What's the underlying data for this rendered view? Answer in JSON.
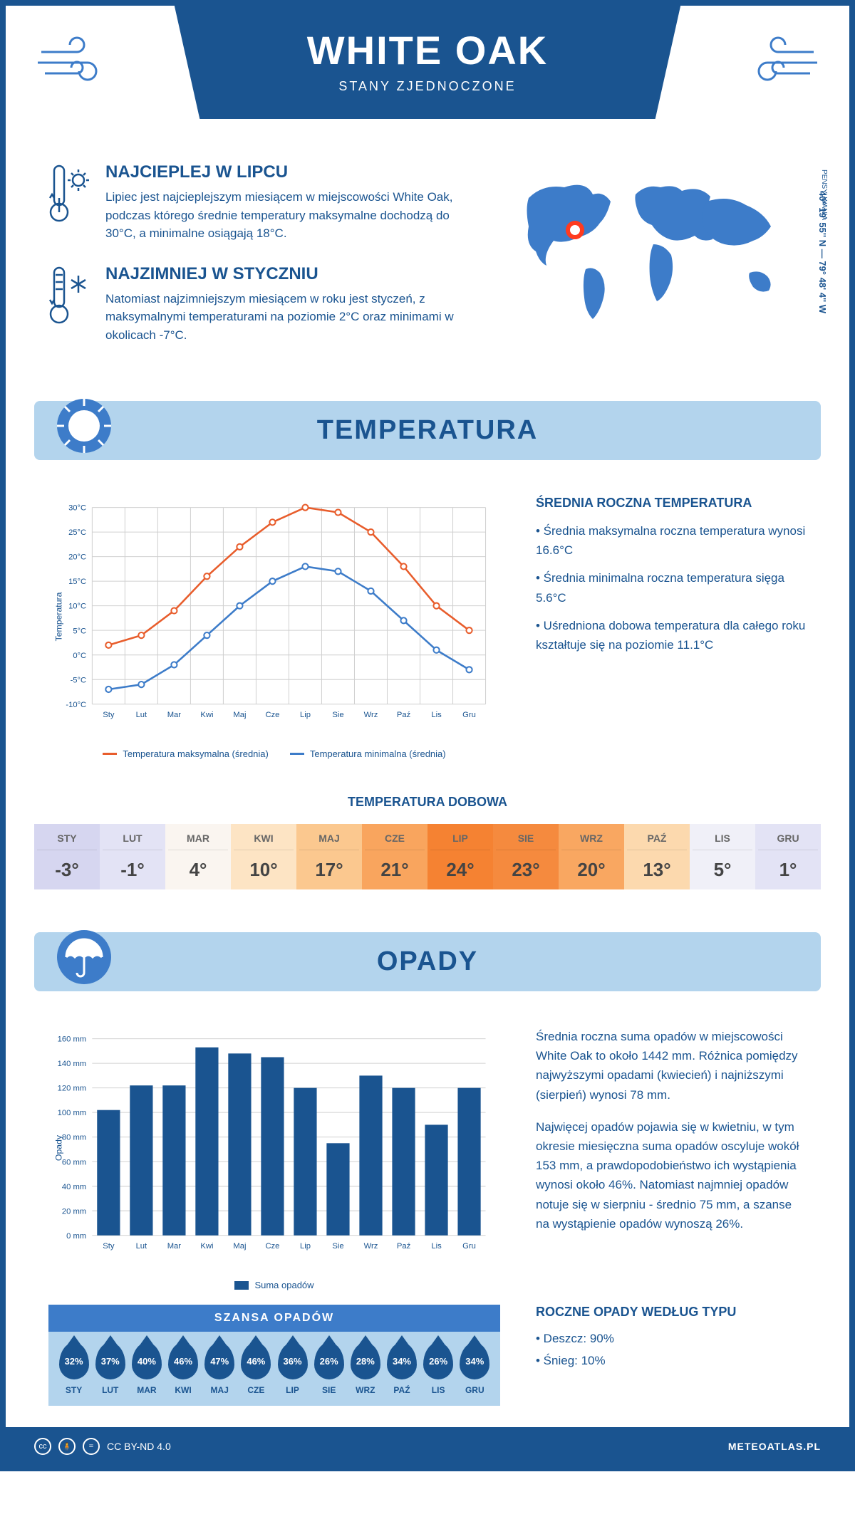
{
  "header": {
    "title": "WHITE OAK",
    "subtitle": "STANY ZJEDNOCZONE"
  },
  "location": {
    "region": "PENSYLWANIA",
    "coords": "40° 19' 55'' N — 79° 48' 4'' W"
  },
  "intro": {
    "hot": {
      "title": "NAJCIEPLEJ W LIPCU",
      "text": "Lipiec jest najcieplejszym miesiącem w miejscowości White Oak, podczas którego średnie temperatury maksymalne dochodzą do 30°C, a minimalne osiągają 18°C."
    },
    "cold": {
      "title": "NAJZIMNIEJ W STYCZNIU",
      "text": "Natomiast najzimniejszym miesiącem w roku jest styczeń, z maksymalnymi temperaturami na poziomie 2°C oraz minimami w okolicach -7°C."
    }
  },
  "temperature": {
    "section_title": "TEMPERATURA",
    "avg_title": "ŚREDNIA ROCZNA TEMPERATURA",
    "avg_max": "• Średnia maksymalna roczna temperatura wynosi 16.6°C",
    "avg_min": "• Średnia minimalna roczna temperatura sięga 5.6°C",
    "avg_daily": "• Uśredniona dobowa temperatura dla całego roku kształtuje się na poziomie 11.1°C",
    "chart": {
      "ylabel": "Temperatura",
      "months": [
        "Sty",
        "Lut",
        "Mar",
        "Kwi",
        "Maj",
        "Cze",
        "Lip",
        "Sie",
        "Wrz",
        "Paź",
        "Lis",
        "Gru"
      ],
      "max_series": [
        2,
        4,
        9,
        16,
        22,
        27,
        30,
        29,
        25,
        18,
        10,
        5
      ],
      "min_series": [
        -7,
        -6,
        -2,
        4,
        10,
        15,
        18,
        17,
        13,
        7,
        1,
        -3
      ],
      "max_color": "#e85d2c",
      "min_color": "#3d7cc9",
      "ylim": [
        -10,
        30
      ],
      "ytick_step": 5,
      "grid_color": "#d0d0d0",
      "legend_max": "Temperatura maksymalna (średnia)",
      "legend_min": "Temperatura minimalna (średnia)"
    },
    "daily": {
      "title": "TEMPERATURA DOBOWA",
      "months": [
        "STY",
        "LUT",
        "MAR",
        "KWI",
        "MAJ",
        "CZE",
        "LIP",
        "SIE",
        "WRZ",
        "PAŹ",
        "LIS",
        "GRU"
      ],
      "values": [
        "-3°",
        "-1°",
        "4°",
        "10°",
        "17°",
        "21°",
        "24°",
        "23°",
        "20°",
        "13°",
        "5°",
        "1°"
      ],
      "colors": [
        "#d6d6f0",
        "#e3e3f5",
        "#faf5f0",
        "#fde4c4",
        "#fbc88f",
        "#f9a55e",
        "#f58232",
        "#f58a3e",
        "#f9a761",
        "#fcd9ae",
        "#f0f0f8",
        "#e3e3f5"
      ]
    }
  },
  "precipitation": {
    "section_title": "OPADY",
    "summary1": "Średnia roczna suma opadów w miejscowości White Oak to około 1442 mm. Różnica pomiędzy najwyższymi opadami (kwiecień) i najniższymi (sierpień) wynosi 78 mm.",
    "summary2": "Najwięcej opadów pojawia się w kwietniu, w tym okresie miesięczna suma opadów oscyluje wokół 153 mm, a prawdopodobieństwo ich wystąpienia wynosi około 46%. Natomiast najmniej opadów notuje się w sierpniu - średnio 75 mm, a szanse na wystąpienie opadów wynoszą 26%.",
    "chart": {
      "ylabel": "Opady",
      "months": [
        "Sty",
        "Lut",
        "Mar",
        "Kwi",
        "Maj",
        "Cze",
        "Lip",
        "Sie",
        "Wrz",
        "Paź",
        "Lis",
        "Gru"
      ],
      "values": [
        102,
        122,
        122,
        153,
        148,
        145,
        120,
        75,
        130,
        120,
        90,
        120
      ],
      "ylim": [
        0,
        160
      ],
      "ytick_step": 20,
      "bar_color": "#1a5490",
      "grid_color": "#d0d0d0",
      "legend": "Suma opadów"
    },
    "chance": {
      "title": "SZANSA OPADÓW",
      "months": [
        "STY",
        "LUT",
        "MAR",
        "KWI",
        "MAJ",
        "CZE",
        "LIP",
        "SIE",
        "WRZ",
        "PAŹ",
        "LIS",
        "GRU"
      ],
      "values": [
        "32%",
        "37%",
        "40%",
        "46%",
        "47%",
        "46%",
        "36%",
        "26%",
        "28%",
        "34%",
        "26%",
        "34%"
      ]
    },
    "by_type": {
      "title": "ROCZNE OPADY WEDŁUG TYPU",
      "rain": "• Deszcz: 90%",
      "snow": "• Śnieg: 10%"
    }
  },
  "footer": {
    "license": "CC BY-ND 4.0",
    "site": "METEOATLAS.PL"
  }
}
